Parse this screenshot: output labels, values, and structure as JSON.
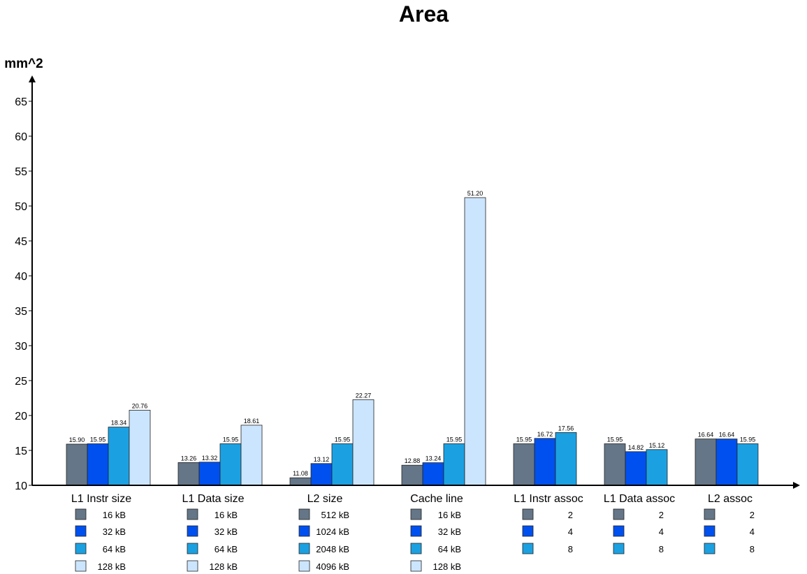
{
  "chart_data": {
    "type": "bar",
    "title": "Area",
    "ylabel": "mm^2",
    "xlabel": "",
    "ylim": [
      10,
      65
    ],
    "yticks": [
      10,
      15,
      20,
      25,
      30,
      35,
      40,
      45,
      50,
      55,
      60,
      65
    ],
    "grid": false,
    "colors": [
      "#647687",
      "#0050ef",
      "#1ba1e2",
      "#cce5ff"
    ],
    "groups": [
      {
        "name": "L1 Instr size",
        "values": [
          15.9,
          15.95,
          18.34,
          20.76
        ],
        "labels": [
          "15.90",
          "15.95",
          "18.34",
          "20.76"
        ],
        "legend": [
          "16 kB",
          "32 kB",
          "64 kB",
          "128 kB"
        ]
      },
      {
        "name": "L1 Data size",
        "values": [
          13.26,
          13.32,
          15.95,
          18.61
        ],
        "labels": [
          "13.26",
          "13.32",
          "15.95",
          "18.61"
        ],
        "legend": [
          "16 kB",
          "32 kB",
          "64 kB",
          "128 kB"
        ]
      },
      {
        "name": "L2 size",
        "values": [
          11.08,
          13.12,
          15.95,
          22.27
        ],
        "labels": [
          "11.08",
          "13.12",
          "15.95",
          "22.27"
        ],
        "legend": [
          "512 kB",
          "1024 kB",
          "2048 kB",
          "4096 kB"
        ]
      },
      {
        "name": "Cache line",
        "values": [
          12.88,
          13.24,
          15.95,
          51.2
        ],
        "labels": [
          "12.88",
          "13.24",
          "15.95",
          "51.20"
        ],
        "legend": [
          "16 kB",
          "32 kB",
          "64 kB",
          "128 kB"
        ]
      },
      {
        "name": "L1 Instr assoc",
        "values": [
          15.95,
          16.72,
          17.56
        ],
        "labels": [
          "15.95",
          "16.72",
          "17.56"
        ],
        "legend": [
          "2",
          "4",
          "8"
        ]
      },
      {
        "name": "L1 Data assoc",
        "values": [
          15.95,
          14.82,
          15.12
        ],
        "labels": [
          "15.95",
          "14.82",
          "15.12"
        ],
        "legend": [
          "2",
          "4",
          "8"
        ]
      },
      {
        "name": "L2 assoc",
        "values": [
          16.64,
          16.64,
          15.95
        ],
        "labels": [
          "16.64",
          "16.64",
          "15.95"
        ],
        "legend": [
          "2",
          "4",
          "8"
        ]
      }
    ]
  }
}
